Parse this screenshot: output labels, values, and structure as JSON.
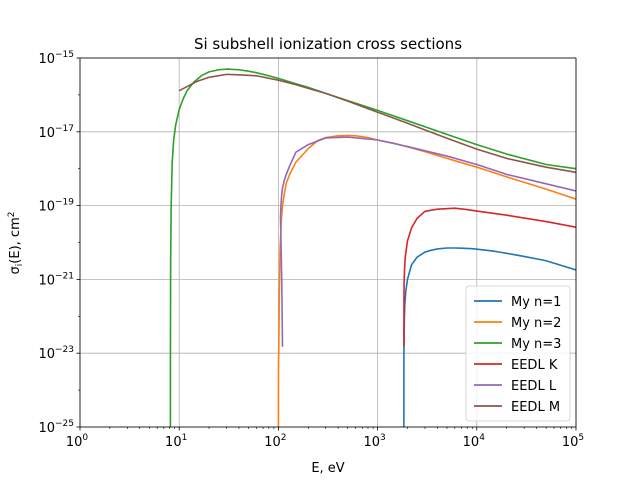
{
  "chart_data": {
    "type": "line",
    "title": "Si subshell ionization cross sections",
    "xlabel": "E, eV",
    "ylabel": "σ_i(E), cm²",
    "x_scale": "log",
    "y_scale": "log",
    "xlim": [
      1,
      100000
    ],
    "ylim": [
      1e-25,
      1e-15
    ],
    "grid": true,
    "legend_position": "lower-right",
    "x_ticks": [
      {
        "base": "10",
        "exp": "0",
        "value": 1
      },
      {
        "base": "10",
        "exp": "1",
        "value": 10
      },
      {
        "base": "10",
        "exp": "2",
        "value": 100
      },
      {
        "base": "10",
        "exp": "3",
        "value": 1000
      },
      {
        "base": "10",
        "exp": "4",
        "value": 10000
      },
      {
        "base": "10",
        "exp": "5",
        "value": 100000
      }
    ],
    "y_ticks": [
      {
        "base": "10",
        "exp": "−25",
        "value": 1e-25
      },
      {
        "base": "10",
        "exp": "−23",
        "value": 1e-23
      },
      {
        "base": "10",
        "exp": "−21",
        "value": 1e-21
      },
      {
        "base": "10",
        "exp": "−19",
        "value": 1e-19
      },
      {
        "base": "10",
        "exp": "−17",
        "value": 1e-17
      },
      {
        "base": "10",
        "exp": "−15",
        "value": 1e-15
      }
    ],
    "series": [
      {
        "name": "My n=1",
        "color": "#1f77b4",
        "x": [
          1840,
          1841,
          1845,
          1850,
          1860,
          1880,
          1920,
          2000,
          2200,
          2500,
          3000,
          3500,
          4000,
          5000,
          6000,
          7000,
          8000,
          9000,
          10000,
          15000,
          20000,
          30000,
          50000,
          100000
        ],
        "y": [
          1e-25,
          6e-24,
          1.6e-23,
          3.2e-23,
          8e-23,
          2e-22,
          4.5e-22,
          1e-21,
          2.5e-21,
          4e-21,
          5.5e-21,
          6.2e-21,
          6.7e-21,
          7.1e-21,
          7.1e-21,
          7e-21,
          6.9e-21,
          6.8e-21,
          6.6e-21,
          5.8e-21,
          5.1e-21,
          4.2e-21,
          3.2e-21,
          1.8e-21
        ]
      },
      {
        "name": "My n=2",
        "color": "#ff7f0e",
        "x": [
          100,
          100.2,
          101,
          102,
          104,
          107,
          110,
          115,
          120,
          130,
          150,
          200,
          250,
          300,
          400,
          500,
          600,
          800,
          1000,
          1500,
          2000,
          3000,
          5000,
          10000,
          20000,
          50000,
          100000
        ],
        "y": [
          1e-25,
          5e-24,
          1.5e-23,
          3e-22,
          7e-21,
          4e-20,
          1e-19,
          2.2e-19,
          4e-19,
          7e-19,
          1.5e-18,
          3.5e-18,
          5.8e-18,
          7e-18,
          7.8e-18,
          8e-18,
          7.8e-18,
          7e-18,
          6e-18,
          4.8e-18,
          3.9e-18,
          2.9e-18,
          1.9e-18,
          1.1e-18,
          6e-19,
          2.8e-19,
          1.5e-19
        ]
      },
      {
        "name": "My n=3",
        "color": "#2ca02c",
        "x": [
          8.15,
          8.16,
          8.2,
          8.3,
          8.5,
          8.8,
          9.2,
          10,
          11,
          12,
          14,
          17,
          20,
          25,
          30,
          40,
          50,
          60,
          80,
          100,
          150,
          200,
          300,
          500,
          1000,
          2000,
          5000,
          10000,
          20000,
          50000,
          100000
        ],
        "y": [
          1e-25,
          1e-23,
          3e-21,
          1e-19,
          1.5e-18,
          6e-18,
          1.5e-17,
          4e-17,
          8e-17,
          1.3e-16,
          2.2e-16,
          3.4e-16,
          4.2e-16,
          4.8e-16,
          5e-16,
          4.8e-16,
          4.4e-16,
          4e-16,
          3.3e-16,
          2.8e-16,
          2e-16,
          1.6e-16,
          1.1e-16,
          7e-17,
          3.8e-17,
          2e-17,
          8.5e-18,
          4.5e-18,
          2.5e-18,
          1.3e-18,
          1e-18
        ]
      },
      {
        "name": "EEDL K",
        "color": "#d62728",
        "x": [
          1840,
          1840,
          1845,
          1850,
          1870,
          1900,
          2000,
          2200,
          2500,
          3000,
          4000,
          6000,
          8000,
          10000,
          20000,
          50000,
          100000
        ],
        "y": [
          1.5e-23,
          1.5e-23,
          3e-22,
          8e-22,
          2e-21,
          4e-21,
          1.1e-20,
          2.5e-20,
          4.5e-20,
          7e-20,
          8e-20,
          8.5e-20,
          7.8e-20,
          7.1e-20,
          5.5e-20,
          3.7e-20,
          2.6e-20
        ]
      },
      {
        "name": "EEDL L",
        "color": "#9467bd",
        "x": [
          110,
          108,
          105,
          106,
          108,
          110,
          115,
          120,
          130,
          150,
          200,
          300,
          500,
          1000,
          2000,
          5000,
          10000,
          20000,
          50000,
          100000
        ],
        "y": [
          1.5e-23,
          1e-21,
          5e-20,
          1e-19,
          2e-19,
          3e-19,
          5e-19,
          7e-19,
          1.2e-18,
          2.8e-18,
          4.5e-18,
          6.8e-18,
          7.2e-18,
          6e-18,
          4e-18,
          2.2e-18,
          1.3e-18,
          7e-19,
          3.9e-19,
          2.5e-19
        ]
      },
      {
        "name": "EEDL M",
        "color": "#8c564b",
        "x": [
          10,
          15,
          20,
          30,
          40,
          60,
          100,
          150,
          200,
          300,
          500,
          1000,
          2000,
          5000,
          10000,
          20000,
          50000,
          100000
        ],
        "y": [
          1.3e-16,
          2.3e-16,
          3e-16,
          3.6e-16,
          3.5e-16,
          3.3e-16,
          2.5e-16,
          1.9e-16,
          1.5e-16,
          1.1e-16,
          6.8e-17,
          3.4e-17,
          1.7e-17,
          6.7e-18,
          3.4e-18,
          1.9e-18,
          1.1e-18,
          8e-19
        ]
      }
    ]
  }
}
